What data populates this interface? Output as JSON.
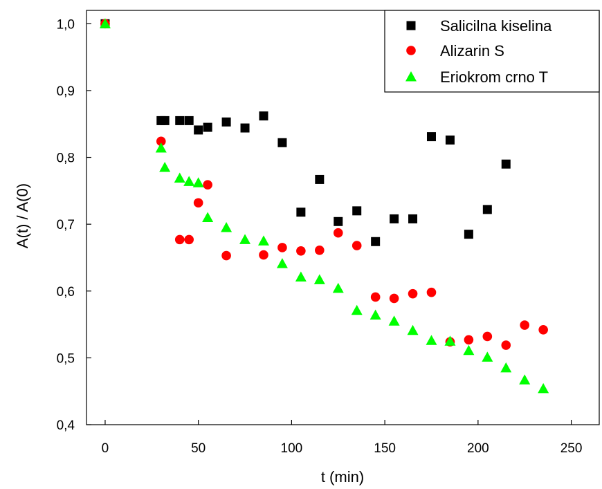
{
  "chart_data": {
    "type": "scatter",
    "xlabel": "t (min)",
    "ylabel": "A(t) / A(0)",
    "xlim": [
      -10,
      265
    ],
    "ylim": [
      0.4,
      1.02
    ],
    "xticks": [
      0,
      50,
      100,
      150,
      200,
      250
    ],
    "xtick_labels": [
      "0",
      "50",
      "100",
      "150",
      "200",
      "250"
    ],
    "yticks": [
      0.4,
      0.5,
      0.6,
      0.7,
      0.8,
      0.9,
      1.0
    ],
    "ytick_labels": [
      "0,4",
      "0,5",
      "0,6",
      "0,7",
      "0,8",
      "0,9",
      "1,0"
    ],
    "grid": false,
    "legend_position": "top-right",
    "series": [
      {
        "name": "Salicilna kiselina",
        "marker": "square",
        "color": "#000000",
        "points": [
          [
            0,
            1.0
          ],
          [
            30,
            0.855
          ],
          [
            32,
            0.855
          ],
          [
            40,
            0.855
          ],
          [
            45,
            0.855
          ],
          [
            50,
            0.841
          ],
          [
            55,
            0.845
          ],
          [
            65,
            0.853
          ],
          [
            75,
            0.844
          ],
          [
            85,
            0.862
          ],
          [
            95,
            0.822
          ],
          [
            105,
            0.718
          ],
          [
            115,
            0.767
          ],
          [
            125,
            0.704
          ],
          [
            135,
            0.72
          ],
          [
            145,
            0.674
          ],
          [
            155,
            0.708
          ],
          [
            165,
            0.708
          ],
          [
            175,
            0.831
          ],
          [
            185,
            0.826
          ],
          [
            195,
            0.685
          ],
          [
            205,
            0.722
          ],
          [
            215,
            0.79
          ]
        ]
      },
      {
        "name": "Alizarin S",
        "marker": "circle",
        "color": "#ff0000",
        "points": [
          [
            0,
            1.0
          ],
          [
            30,
            0.824
          ],
          [
            40,
            0.677
          ],
          [
            45,
            0.677
          ],
          [
            50,
            0.732
          ],
          [
            55,
            0.759
          ],
          [
            65,
            0.653
          ],
          [
            85,
            0.654
          ],
          [
            95,
            0.665
          ],
          [
            105,
            0.66
          ],
          [
            115,
            0.661
          ],
          [
            125,
            0.687
          ],
          [
            135,
            0.668
          ],
          [
            145,
            0.591
          ],
          [
            155,
            0.589
          ],
          [
            165,
            0.596
          ],
          [
            175,
            0.598
          ],
          [
            185,
            0.524
          ],
          [
            195,
            0.527
          ],
          [
            205,
            0.532
          ],
          [
            215,
            0.519
          ],
          [
            225,
            0.549
          ],
          [
            235,
            0.542
          ]
        ]
      },
      {
        "name": "Eriokrom crno T",
        "marker": "triangle",
        "color": "#00ff00",
        "points": [
          [
            0,
            1.0
          ],
          [
            30,
            0.814
          ],
          [
            32,
            0.785
          ],
          [
            40,
            0.769
          ],
          [
            45,
            0.764
          ],
          [
            50,
            0.762
          ],
          [
            55,
            0.71
          ],
          [
            65,
            0.695
          ],
          [
            75,
            0.677
          ],
          [
            85,
            0.675
          ],
          [
            95,
            0.641
          ],
          [
            105,
            0.621
          ],
          [
            115,
            0.617
          ],
          [
            125,
            0.604
          ],
          [
            135,
            0.571
          ],
          [
            145,
            0.564
          ],
          [
            155,
            0.555
          ],
          [
            165,
            0.541
          ],
          [
            175,
            0.526
          ],
          [
            185,
            0.525
          ],
          [
            195,
            0.511
          ],
          [
            205,
            0.501
          ],
          [
            215,
            0.485
          ],
          [
            225,
            0.467
          ],
          [
            235,
            0.454
          ]
        ]
      }
    ]
  }
}
